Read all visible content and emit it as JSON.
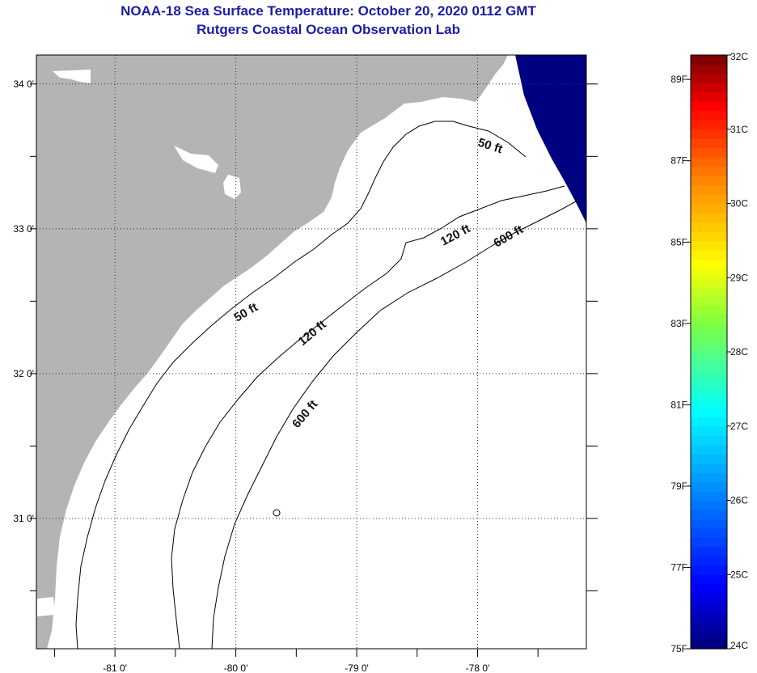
{
  "title_line1": "NOAA-18 Sea Surface Temperature:  October 20, 2020 0112 GMT",
  "title_line2": "Rutgers Coastal Ocean Observation Lab",
  "map": {
    "lon_range": [
      -81.65,
      -77.1
    ],
    "lat_range": [
      30.1,
      34.2
    ],
    "lon_ticks": [
      {
        "value": -81,
        "label": "-81 0'"
      },
      {
        "value": -80,
        "label": "-80 0'"
      },
      {
        "value": -79,
        "label": "-79 0'"
      },
      {
        "value": -78,
        "label": "-78 0'"
      }
    ],
    "lat_ticks": [
      {
        "value": 34,
        "label": "34 0'"
      },
      {
        "value": 33,
        "label": "33 0'"
      },
      {
        "value": 32,
        "label": "32 0'"
      },
      {
        "value": 31,
        "label": "31 0'"
      }
    ],
    "grid": "dotted",
    "land_color": "#b4b4b4",
    "ocean_color": "#ffffff",
    "cloud_color": "#000080",
    "depth_labels": [
      "50 ft",
      "50 ft",
      "120 ft",
      "120 ft",
      "600 ft",
      "600 ft"
    ]
  },
  "colorbar": {
    "celsius_labels": [
      "32C",
      "31C",
      "30C",
      "29C",
      "28C",
      "27C",
      "26C",
      "25C",
      "24C"
    ],
    "fahrenheit_labels": [
      "89F",
      "87F",
      "85F",
      "83F",
      "81F",
      "79F",
      "77F",
      "75F"
    ],
    "range_c": [
      24,
      32
    ],
    "range_f": [
      75,
      89.6
    ]
  }
}
